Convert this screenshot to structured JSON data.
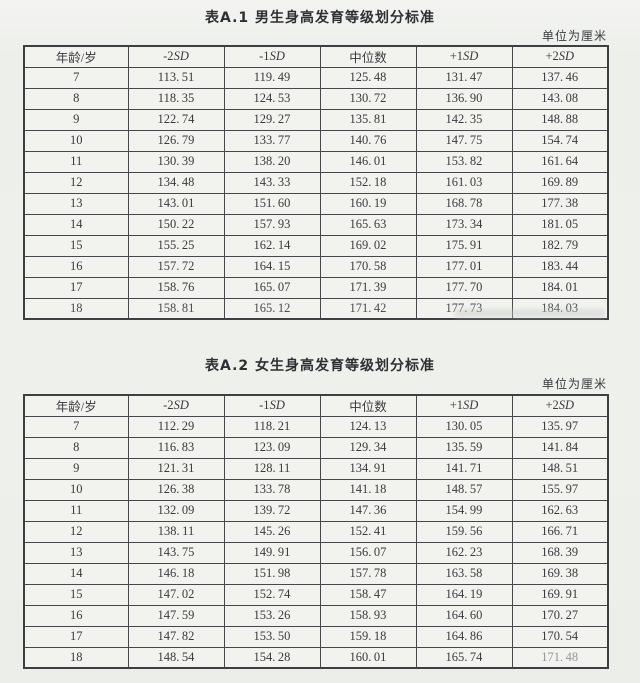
{
  "tables": [
    {
      "title": "表A.1 男生身高发育等级划分标准",
      "unit": "单位为厘米",
      "headers": [
        "年龄/岁",
        "-2SD",
        "-1SD",
        "中位数",
        "+1SD",
        "+2SD"
      ],
      "rows": [
        [
          "7",
          "113.51",
          "119.49",
          "125.48",
          "131.47",
          "137.46"
        ],
        [
          "8",
          "118.35",
          "124.53",
          "130.72",
          "136.90",
          "143.08"
        ],
        [
          "9",
          "122.74",
          "129.27",
          "135.81",
          "142.35",
          "148.88"
        ],
        [
          "10",
          "126.79",
          "133.77",
          "140.76",
          "147.75",
          "154.74"
        ],
        [
          "11",
          "130.39",
          "138.20",
          "146.01",
          "153.82",
          "161.64"
        ],
        [
          "12",
          "134.48",
          "143.33",
          "152.18",
          "161.03",
          "169.89"
        ],
        [
          "13",
          "143.01",
          "151.60",
          "160.19",
          "168.78",
          "177.38"
        ],
        [
          "14",
          "150.22",
          "157.93",
          "165.63",
          "173.34",
          "181.05"
        ],
        [
          "15",
          "155.25",
          "162.14",
          "169.02",
          "175.91",
          "182.79"
        ],
        [
          "16",
          "157.72",
          "164.15",
          "170.58",
          "177.01",
          "183.44"
        ],
        [
          "17",
          "158.76",
          "165.07",
          "171.39",
          "177.70",
          "184.01"
        ],
        [
          "18",
          "158.81",
          "165.12",
          "171.42",
          "177.73",
          "184.03"
        ]
      ]
    },
    {
      "title": "表A.2 女生身高发育等级划分标准",
      "unit": "单位为厘米",
      "headers": [
        "年龄/岁",
        "-2SD",
        "-1SD",
        "中位数",
        "+1SD",
        "+2SD"
      ],
      "rows": [
        [
          "7",
          "112.29",
          "118.21",
          "124.13",
          "130.05",
          "135.97"
        ],
        [
          "8",
          "116.83",
          "123.09",
          "129.34",
          "135.59",
          "141.84"
        ],
        [
          "9",
          "121.31",
          "128.11",
          "134.91",
          "141.71",
          "148.51"
        ],
        [
          "10",
          "126.38",
          "133.78",
          "141.18",
          "148.57",
          "155.97"
        ],
        [
          "11",
          "132.09",
          "139.72",
          "147.36",
          "154.99",
          "162.63"
        ],
        [
          "12",
          "138.11",
          "145.26",
          "152.41",
          "159.56",
          "166.71"
        ],
        [
          "13",
          "143.75",
          "149.91",
          "156.07",
          "162.23",
          "168.39"
        ],
        [
          "14",
          "146.18",
          "151.98",
          "157.78",
          "163.58",
          "169.38"
        ],
        [
          "15",
          "147.02",
          "152.74",
          "158.47",
          "164.19",
          "169.91"
        ],
        [
          "16",
          "147.59",
          "153.26",
          "158.93",
          "164.60",
          "170.27"
        ],
        [
          "17",
          "147.82",
          "153.50",
          "159.18",
          "164.86",
          "170.54"
        ],
        [
          "18",
          "148.54",
          "154.28",
          "160.01",
          "165.74",
          "171.48"
        ]
      ]
    }
  ]
}
